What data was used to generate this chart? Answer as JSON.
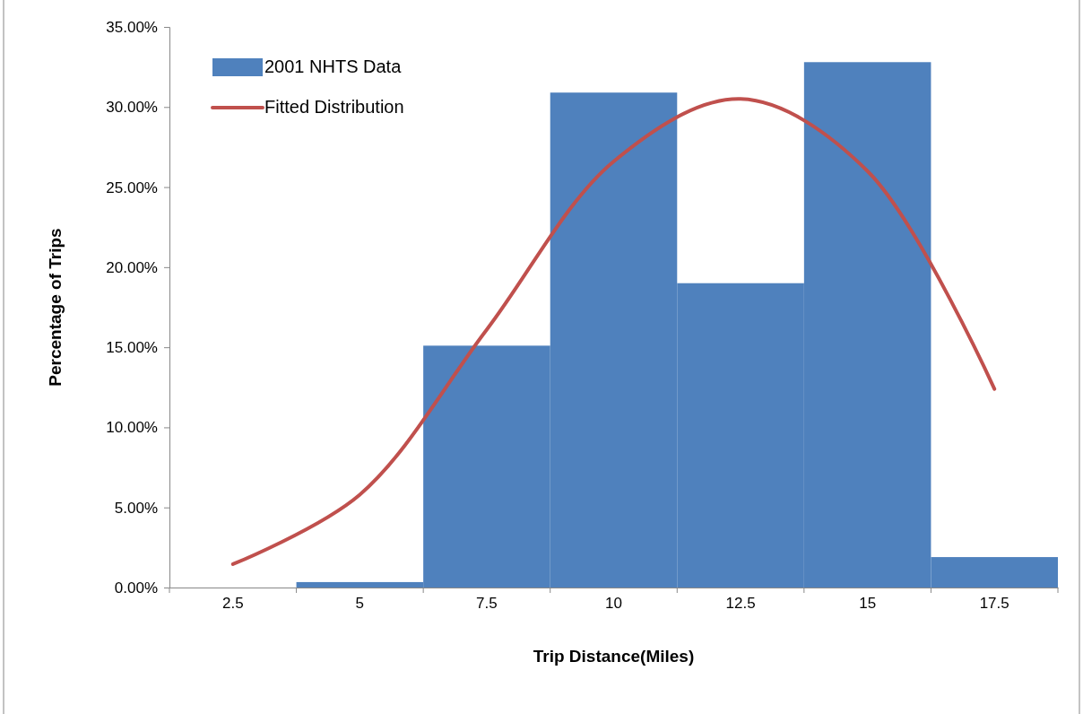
{
  "chart_data": {
    "type": "bar",
    "xlabel": "Trip Distance(Miles)",
    "ylabel": "Percentage of Trips",
    "categories": [
      "2.5",
      "5",
      "7.5",
      "10",
      "12.5",
      "15",
      "17.5"
    ],
    "series": [
      {
        "name": "2001 NHTS Data",
        "color": "#4f81bd",
        "values": [
          0,
          0.34,
          15.1,
          30.9,
          19.0,
          32.8,
          1.9
        ]
      },
      {
        "name": "Fitted Distribution",
        "type": "line",
        "color": "#c0504d",
        "values": [
          1.46,
          5.8,
          16.1,
          26.6,
          30.5,
          26.0,
          12.4
        ]
      }
    ],
    "ylim": [
      0,
      35
    ],
    "yticks": [
      {
        "value": 0,
        "label": "0.00%"
      },
      {
        "value": 5,
        "label": "5.00%"
      },
      {
        "value": 10,
        "label": "10.00%"
      },
      {
        "value": 15,
        "label": "15.00%"
      },
      {
        "value": 20,
        "label": "20.00%"
      },
      {
        "value": 25,
        "label": "25.00%"
      },
      {
        "value": 30,
        "label": "30.00%"
      },
      {
        "value": 35,
        "label": "35.00%"
      }
    ],
    "legend": "top left",
    "grid": false,
    "marker": "none",
    "line_style": "solid"
  }
}
